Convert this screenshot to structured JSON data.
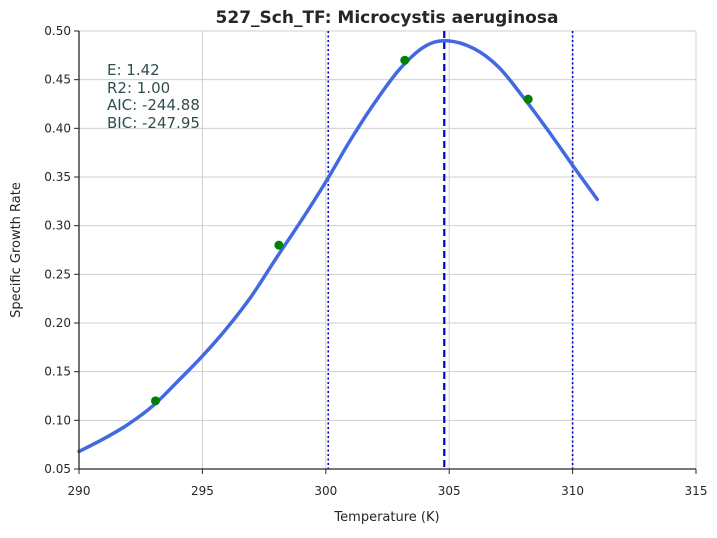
{
  "chart_data": {
    "type": "line",
    "title": "527_Sch_TF: Microcystis aeruginosa",
    "xlabel": "Temperature (K)",
    "ylabel": "Specific Growth Rate",
    "xlim": [
      290,
      315
    ],
    "ylim": [
      0.05,
      0.5
    ],
    "x_ticks": [
      "290",
      "295",
      "300",
      "305",
      "310",
      "315"
    ],
    "y_ticks": [
      "0.05",
      "0.10",
      "0.15",
      "0.20",
      "0.25",
      "0.30",
      "0.35",
      "0.40",
      "0.45",
      "0.50"
    ],
    "grid": true,
    "annotations": [
      "E:  1.42",
      "R2:  1.00",
      "AIC: -244.88",
      "BIC: -247.95"
    ],
    "series": [
      {
        "kind": "fitted-curve",
        "color": "#4169e1",
        "x": [
          290.0,
          291.0,
          292.0,
          293.0,
          294.0,
          295.0,
          296.0,
          297.0,
          298.0,
          299.0,
          300.0,
          301.0,
          302.0,
          303.0,
          304.0,
          304.9,
          306.0,
          307.0,
          308.0,
          309.0,
          310.0,
          311.0
        ],
        "y": [
          0.068,
          0.081,
          0.096,
          0.115,
          0.14,
          0.166,
          0.195,
          0.228,
          0.267,
          0.305,
          0.345,
          0.388,
          0.427,
          0.461,
          0.484,
          0.49,
          0.482,
          0.463,
          0.432,
          0.398,
          0.362,
          0.327
        ]
      },
      {
        "kind": "observed-points",
        "color": "#008000",
        "x": [
          293.1,
          298.1,
          303.2,
          308.2
        ],
        "y": [
          0.12,
          0.28,
          0.47,
          0.43
        ]
      }
    ],
    "vertical_lines": [
      {
        "x": 300.1,
        "style": "dotted",
        "color": "#0000cd"
      },
      {
        "x": 304.8,
        "style": "dashed",
        "color": "#0000cd"
      },
      {
        "x": 310.0,
        "style": "dotted",
        "color": "#0000cd"
      }
    ]
  }
}
